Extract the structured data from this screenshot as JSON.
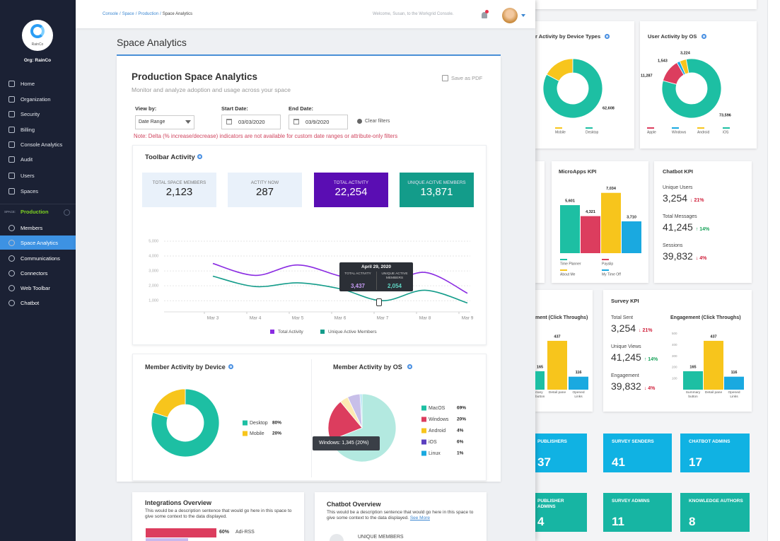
{
  "sidebar": {
    "logo": "RainCo",
    "org": "Org: RainCo",
    "nav": [
      "Home",
      "Organization",
      "Security",
      "Billing",
      "Console Analytics",
      "Audit",
      "Users",
      "Spaces"
    ],
    "space_label": "SPACE:",
    "space_name": "Production",
    "space_nav": [
      "Members",
      "Space Analytics",
      "Communications",
      "Connectors",
      "Web Toolbar",
      "Chatbot"
    ]
  },
  "header": {
    "breadcrumb": [
      "Console",
      "Space",
      "Production",
      "Space Analytics"
    ],
    "separator": "/",
    "welcome": "Welcome, Susan, to the Workgrid Console."
  },
  "page_title": "Space Analytics",
  "report": {
    "title": "Production Space Analytics",
    "subtitle": "Monitor and analyze adoption and usage across your space",
    "save": "Save as PDF",
    "view_label": "View by:",
    "view_value": "Date Range",
    "start_label": "Start Date:",
    "start_value": "03/03/2020",
    "end_label": "End Date:",
    "end_value": "03/9/2020",
    "clear": "Clear filters",
    "note": "Note: Delta (% increase/decrease) indicators are not available for custom date ranges or attribute-only filters"
  },
  "toolbar": {
    "title": "Toolbar Activity",
    "kpis": [
      {
        "label": "TOTAL SPACE MEMBERS",
        "value": "2,123",
        "color": "#e9f1fa"
      },
      {
        "label": "ACTITY NOW",
        "value": "287",
        "color": "#e9f1fa"
      },
      {
        "label": "TOTAL ACTIVITY",
        "value": "22,254",
        "color": "#5a0db3"
      },
      {
        "label": "UNIQUE ACITVE MEMBERS",
        "value": "13,871",
        "color": "#139c8a"
      }
    ],
    "chart": {
      "type": "line",
      "categories": [
        "Mar 3",
        "Mar 4",
        "Mar 5",
        "Mar 6",
        "Mar 7",
        "Mar 8",
        "Mar 9"
      ],
      "ylim": [
        250,
        5000
      ],
      "yticks": [
        {
          "value": 1000,
          "label": "1,000"
        },
        {
          "value": 2000,
          "label": "2,000"
        },
        {
          "value": 3000,
          "label": "3,000"
        },
        {
          "value": 4000,
          "label": "4,000"
        },
        {
          "value": 5000,
          "label": "5,000"
        }
      ],
      "grid": true,
      "series": [
        {
          "name": "Total Activity",
          "color": "#8a2be2",
          "values": [
            3500,
            2700,
            3400,
            2650,
            2050,
            2900,
            1500
          ]
        },
        {
          "name": "Unique Active Members",
          "color": "#139c8a",
          "values": [
            2650,
            1950,
            2200,
            1800,
            1000,
            1700,
            850
          ]
        }
      ],
      "tooltip": {
        "title": "April 29, 2020",
        "items": [
          {
            "label": "TOTAL ACTIVITY",
            "value": "3,437",
            "color": "#c79cf5"
          },
          {
            "label": "UNIQUE ACTIVE MEMBERS",
            "value": "2,054",
            "color": "#5fd6c4"
          }
        ]
      }
    }
  },
  "member_device": {
    "title": "Member Activity by Device",
    "chart": {
      "type": "donut",
      "categories": [
        "Desktop",
        "Mobile"
      ],
      "values": [
        80,
        20
      ],
      "value_labels": [
        "80%",
        "20%"
      ],
      "colors": [
        "#1dbfa3",
        "#f7c51c"
      ]
    }
  },
  "member_os": {
    "title": "Member Activity by OS",
    "chart": {
      "type": "pie",
      "categories": [
        "MacOS",
        "Windows",
        "Android",
        "iOS",
        "Linux"
      ],
      "values": [
        69,
        20,
        4,
        6,
        1
      ],
      "value_labels": [
        "69%",
        "20%",
        "4%",
        "6%",
        "1%"
      ],
      "colors": [
        "#1dbfa3",
        "#dc3d5e",
        "#f7c51c",
        "#5b3fbf",
        "#1aa9e0"
      ]
    },
    "tooltip": "Windows: 1,345 (20%)"
  },
  "integrations": {
    "title": "Integrations Overview",
    "description": "This would be a description sentence that would go here in this space to give some context to the data displayed.",
    "bar": {
      "value": 60,
      "value_label": "60%",
      "name": "Adi-RSS",
      "color": "#dc3d5e"
    }
  },
  "chatbot_overview": {
    "title": "Chatbot Overview",
    "description": "This would be a description sentence that would go here in this space to give some context to the data displayed.",
    "link": "See More",
    "metric": "UNIQUE MEMBERS"
  },
  "background": {
    "device_types": {
      "title": "r Activity by Device Types",
      "chart": {
        "type": "donut",
        "categories": [
          "Mobile",
          "Desktop"
        ],
        "values": [
          13000,
          62608
        ],
        "value_labels": [
          null,
          "62,608"
        ],
        "colors": [
          "#f7c51c",
          "#1dbfa3"
        ]
      }
    },
    "os": {
      "title": "User Activity by OS",
      "chart": {
        "type": "donut",
        "categories": [
          "Apple",
          "Windows",
          "Android",
          "iOS"
        ],
        "values": [
          11287,
          1543,
          3224,
          73596
        ],
        "value_labels": [
          "11,287",
          "1,543",
          "3,224",
          "73,596"
        ],
        "colors": [
          "#dc3d5e",
          "#1aa9e0",
          "#f7c51c",
          "#1dbfa3"
        ]
      }
    },
    "microapps": {
      "title": "MicroApps KPI",
      "chart": {
        "type": "bar",
        "categories": [
          "Time Planner",
          "Payslip",
          "About Me",
          "My Time Off"
        ],
        "values": [
          5601,
          4321,
          7034,
          3710
        ],
        "value_labels": [
          "5,601",
          "4,321",
          "7,034",
          "3,710"
        ],
        "colors": [
          "#1dbfa3",
          "#dc3d5e",
          "#f7c51c",
          "#1aa9e0"
        ],
        "ylim": [
          0,
          8000
        ]
      }
    },
    "chatbot_kpi": {
      "title": "Chatbot KPI",
      "metrics": [
        {
          "label": "Unique Users",
          "value": "3,254",
          "delta": "↓ 21%",
          "color": "#d0213c"
        },
        {
          "label": "Total Messages",
          "value": "41,245",
          "delta": "↑ 14%",
          "color": "#18a35a"
        },
        {
          "label": "Sessions",
          "value": "39,832",
          "delta": "↓ 4%",
          "color": "#d0213c"
        }
      ]
    },
    "survey_kpi": {
      "title": "Survey KPI",
      "metrics": [
        {
          "label": "Total Sent",
          "value": "3,254",
          "delta": "↓ 21%",
          "color": "#d0213c"
        },
        {
          "label": "Unique Views",
          "value": "41,245",
          "delta": "↑ 14%",
          "color": "#18a35a"
        },
        {
          "label": "Engagement",
          "value": "39,832",
          "delta": "↓ 4%",
          "color": "#d0213c"
        }
      ]
    },
    "engagement": {
      "title": "Engagement (Click Throughs)",
      "chart": {
        "type": "bar",
        "categories": [
          "Summary button",
          "Detail pane",
          "Opened Links"
        ],
        "values": [
          165,
          437,
          116
        ],
        "colors": [
          "#1dbfa3",
          "#f7c51c",
          "#1aa9e0"
        ],
        "ylim": [
          0,
          500
        ],
        "yticks": [
          100,
          200,
          300,
          400,
          500
        ]
      }
    },
    "engagement_cut": {
      "title": "ment (Click Throughs)",
      "chart": {
        "type": "bar",
        "categories": [
          "mary button",
          "Detail pane",
          "Opened Links"
        ],
        "values": [
          165,
          437,
          116
        ],
        "colors": [
          "#1dbfa3",
          "#f7c51c",
          "#1aa9e0"
        ],
        "ylim": [
          0,
          500
        ]
      }
    },
    "tiles": [
      {
        "label": "PUBLISHERS",
        "value": "37",
        "color": "#10b2e3"
      },
      {
        "label": "SURVEY SENDERS",
        "value": "41",
        "color": "#10b2e3"
      },
      {
        "label": "CHATBOT ADMINS",
        "value": "17",
        "color": "#10b2e3"
      },
      {
        "label": "PUBLISHER ADMINS",
        "value": "4",
        "color": "#17b5a3"
      },
      {
        "label": "SURVEY ADMINS",
        "value": "11",
        "color": "#17b5a3"
      },
      {
        "label": "KNOWLEDGE AUTHORS",
        "value": "8",
        "color": "#17b5a3"
      }
    ]
  }
}
